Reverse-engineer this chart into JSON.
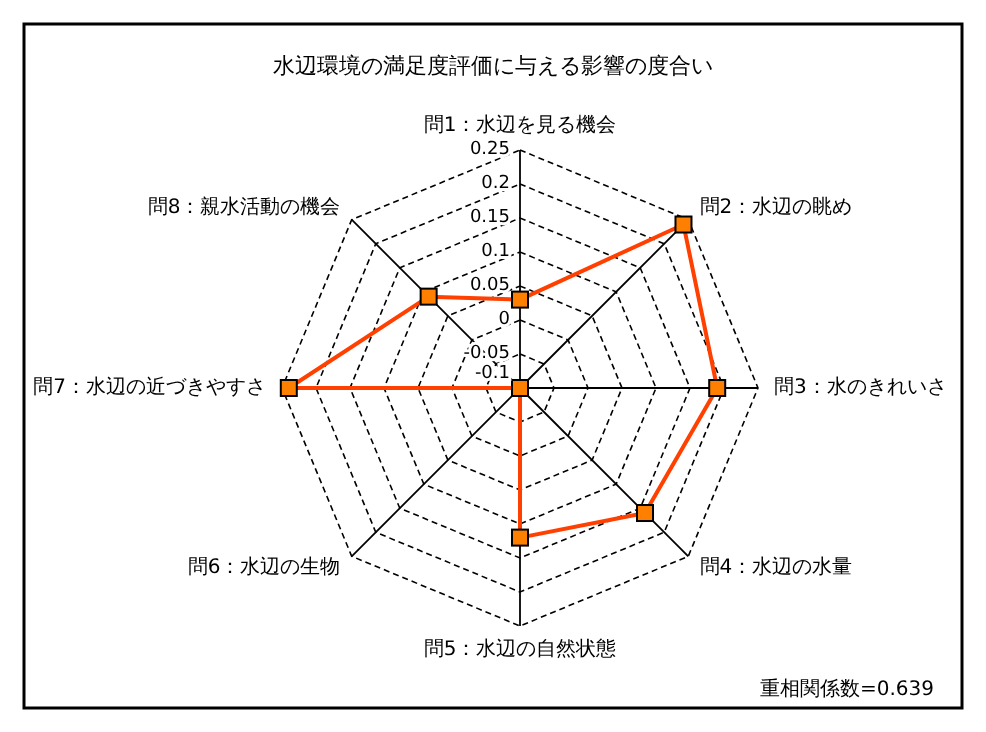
{
  "chart_data": {
    "type": "radar",
    "title": "水辺環境の満足度評価に与える影響の度合い",
    "categories": [
      "問1：水辺を見る機会",
      "問2：水辺の眺め",
      "問3：水のきれいさ",
      "問4：水辺の水量",
      "問5：水辺の自然状態",
      "問6：水辺の生物",
      "問7：水辺の近づきやすさ",
      "問8：親水活動の機会"
    ],
    "series": [
      {
        "color": "#ff4000",
        "values": [
          0.03,
          0.24,
          0.19,
          0.16,
          0.12,
          -0.1,
          0.24,
          0.09
        ]
      }
    ],
    "ylim": [
      -0.1,
      0.25
    ],
    "yticks": [
      -0.1,
      -0.05,
      0,
      0.05,
      0.1,
      0.15,
      0.2,
      0.25
    ],
    "marker": "square",
    "annotations": [
      "重相関係数=0.639"
    ]
  }
}
